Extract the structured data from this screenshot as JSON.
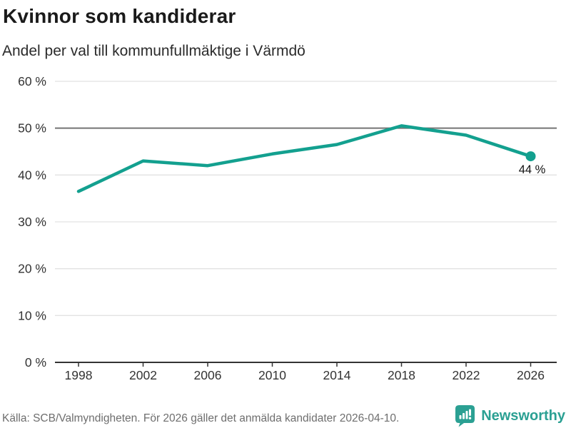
{
  "header": {
    "title": "Kvinnor som kandiderar",
    "subtitle": "Andel per val till kommunfullmäktige i Värmdö"
  },
  "chart_data": {
    "type": "line",
    "title": "Kvinnor som kandiderar",
    "subtitle": "Andel per val till kommunfullmäktige i Värmdö",
    "categories": [
      "1998",
      "2002",
      "2006",
      "2010",
      "2014",
      "2018",
      "2022",
      "2026"
    ],
    "values": [
      36.5,
      43,
      42,
      44.5,
      46.5,
      50.5,
      48.5,
      44
    ],
    "end_label": "44 %",
    "ylim": [
      0,
      60
    ],
    "ytick_step": 10,
    "ytick_suffix": " %",
    "yticks": [
      "0 %",
      "10 %",
      "20 %",
      "30 %",
      "40 %",
      "50 %",
      "60 %"
    ],
    "grid": true,
    "reference_line": 50,
    "legend": "none",
    "line_color": "#13a08f",
    "grid_color": "#e2e2e2",
    "reference_color": "#757575",
    "axis_color": "#333333"
  },
  "footer": {
    "source": "Källa: SCB/Valmyndigheten. För 2026 gäller det anmälda kandidater 2026-04-10.",
    "brand": "Newsworthy",
    "brand_color": "#2ba093",
    "logo_icon": "bar-chart-speech-bubble-icon"
  }
}
